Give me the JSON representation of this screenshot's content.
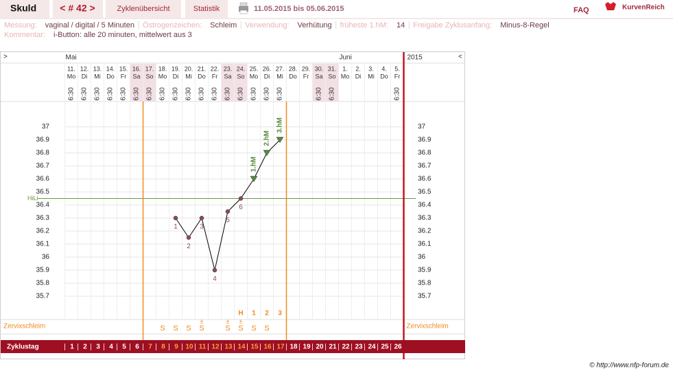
{
  "header": {
    "title": "Skuld",
    "cycle": "< # 42 >",
    "nav": [
      "Zyklenübersicht",
      "Statistik"
    ],
    "date_range": "11.05.2015 bis 05.06.2015",
    "faq": "FAQ",
    "brand": "KurvenReich"
  },
  "info": {
    "items": [
      {
        "label": "Messung:",
        "value": "vaginal / digital / 5 Minuten"
      },
      {
        "label": "Östrogenzeichen:",
        "value": "Schleim"
      },
      {
        "label": "Verwendung:",
        "value": "Verhütung"
      },
      {
        "label": "früheste 1.hM:",
        "value": "14"
      },
      {
        "label": "Freigabe Zyklusanfang:",
        "value": "Minus-8-Regel"
      }
    ],
    "comment": {
      "label": "Kommentar:",
      "value": "i-Button: alle 20 minuten, mittelwert aus 3"
    }
  },
  "chart_data": {
    "type": "line",
    "nav_left": ">",
    "nav_right": "<",
    "year": "2015",
    "months": [
      "Mai",
      null,
      null,
      null,
      null,
      null,
      null,
      null,
      null,
      null,
      null,
      null,
      null,
      null,
      null,
      null,
      null,
      null,
      null,
      null,
      null,
      "Juni",
      null,
      null,
      null,
      null
    ],
    "categories": [
      "11.",
      "12.",
      "13.",
      "14.",
      "15.",
      "16.",
      "17.",
      "18.",
      "19.",
      "20.",
      "21.",
      "22.",
      "23.",
      "24.",
      "25.",
      "26.",
      "27.",
      "28.",
      "29.",
      "30.",
      "31.",
      "1.",
      "2.",
      "3.",
      "4.",
      "5."
    ],
    "weekdays": [
      "Mo",
      "Di",
      "Mi",
      "Do",
      "Fr",
      "Sa",
      "So",
      "Mo",
      "Di",
      "Mi",
      "Do",
      "Fr",
      "Sa",
      "So",
      "Mo",
      "Di",
      "Mi",
      "Do",
      "Fr",
      "Sa",
      "So",
      "Mo",
      "Di",
      "Mi",
      "Do",
      "Fr"
    ],
    "times": [
      "6:30",
      "6:30",
      "6:30",
      "6:30",
      "6:30",
      "6:30",
      "6:30",
      "6:30",
      "6:30",
      "6:30",
      "6:30",
      "6:30",
      "6:30",
      "6:30",
      "6:30",
      "6:30",
      "6:30",
      null,
      null,
      "6:30",
      "6:30",
      null,
      null,
      null,
      null,
      "6:30"
    ],
    "weekend": [
      false,
      false,
      false,
      false,
      false,
      true,
      true,
      false,
      false,
      false,
      false,
      false,
      true,
      true,
      false,
      false,
      false,
      false,
      false,
      true,
      true,
      false,
      false,
      false,
      false,
      false
    ],
    "series": [
      {
        "color": "#000000",
        "point_color": "#8b4a5a",
        "values": [
          null,
          null,
          null,
          null,
          null,
          null,
          null,
          null,
          36.3,
          36.15,
          36.3,
          35.9,
          36.35,
          36.45,
          36.6,
          36.8,
          36.9,
          null,
          null,
          null,
          null,
          null,
          null,
          null,
          null,
          null
        ],
        "point_labels": [
          null,
          null,
          null,
          null,
          null,
          null,
          null,
          null,
          "1",
          "2",
          "3",
          "4",
          "5",
          "6",
          "1.hM",
          "2.hM",
          "3.hM",
          null,
          null,
          null,
          null,
          null,
          null,
          null,
          null,
          null
        ]
      }
    ],
    "hm_days": [
      15,
      16,
      17
    ],
    "hm_color": "#5a8a3a",
    "ylim": [
      35.526,
      37.195
    ],
    "yticks": [
      35.7,
      35.8,
      35.9,
      36,
      36.1,
      36.2,
      36.3,
      36.4,
      36.5,
      36.6,
      36.7,
      36.8,
      36.9,
      37
    ],
    "grid": true,
    "hili": {
      "label": "HiLi",
      "value": 36.45,
      "color": "#6b9a3a"
    },
    "cervix_label": "Zervixschleim",
    "cervix": [
      null,
      null,
      null,
      null,
      null,
      null,
      null,
      "S",
      "S",
      "S",
      "S",
      null,
      "S",
      "S",
      "S",
      "S",
      null,
      null,
      null,
      null,
      null,
      null,
      null,
      null,
      null,
      null
    ],
    "cervix_plus": [
      null,
      null,
      null,
      null,
      null,
      null,
      null,
      null,
      null,
      null,
      "±",
      null,
      "±",
      "±",
      null,
      null,
      null,
      null,
      null,
      null,
      null,
      null,
      null,
      null,
      null,
      null
    ],
    "peak": [
      null,
      null,
      null,
      null,
      null,
      null,
      null,
      null,
      null,
      null,
      null,
      null,
      null,
      "H",
      "1",
      "2",
      "3",
      null,
      null,
      null,
      null,
      null,
      null,
      null,
      null,
      null
    ],
    "cycle_label": "Zyklustag",
    "cycle_days": [
      1,
      2,
      3,
      4,
      5,
      6,
      7,
      8,
      9,
      10,
      11,
      12,
      13,
      14,
      15,
      16,
      17,
      18,
      19,
      20,
      21,
      22,
      23,
      24,
      25,
      26
    ],
    "fertile": [
      7,
      17
    ]
  },
  "footer": "© http://www.nfp-forum.de"
}
